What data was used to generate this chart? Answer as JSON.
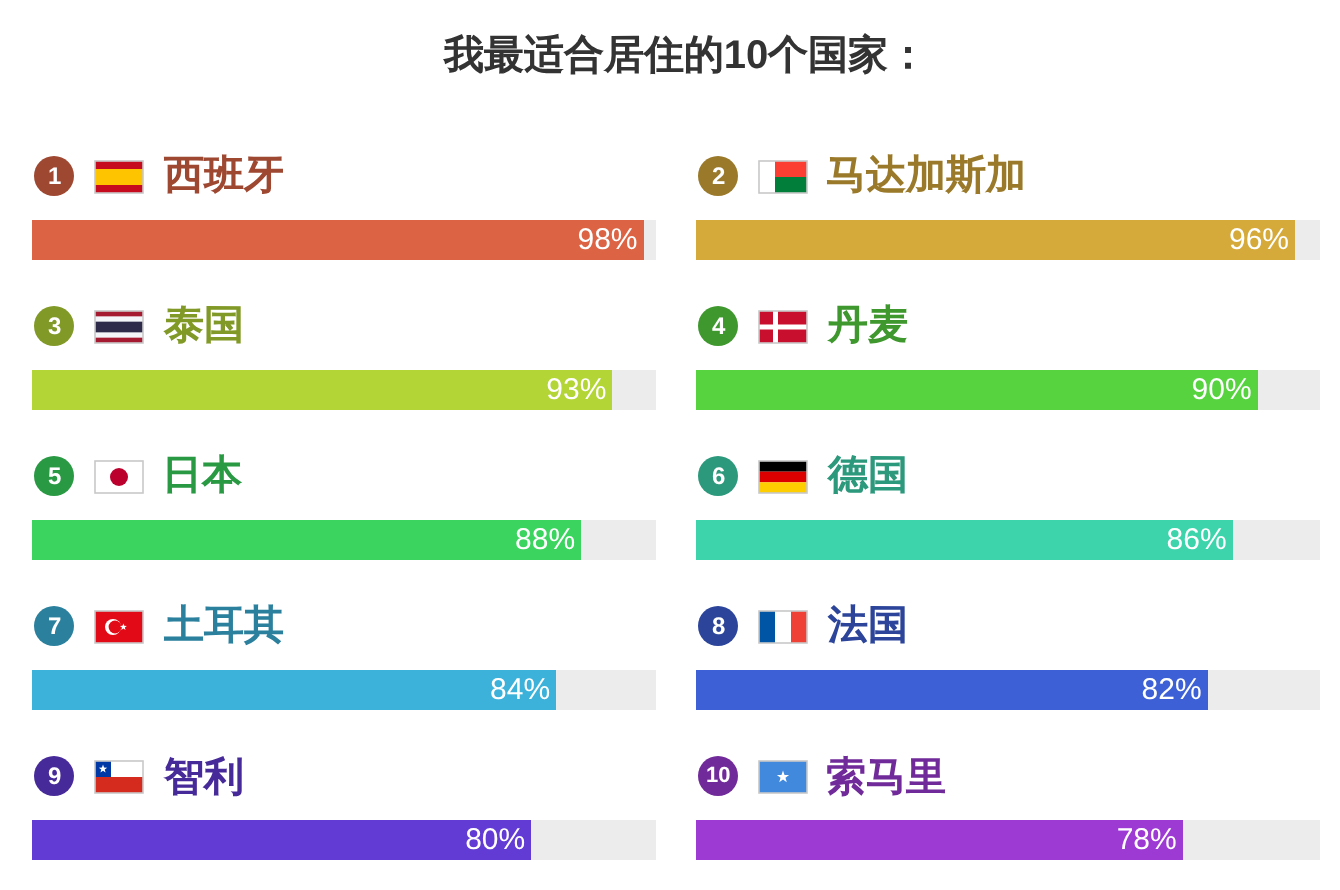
{
  "chart_data": [
    {
      "type": "bar",
      "orientation": "horizontal",
      "title": "我最适合居住的10个国家：",
      "categories": [
        "西班牙",
        "泰国",
        "日本",
        "土耳其",
        "智利"
      ],
      "values": [
        98,
        93,
        88,
        84,
        80
      ],
      "value_labels": [
        "98%",
        "93%",
        "88%",
        "84%",
        "80%"
      ],
      "colors": [
        "#dc6444",
        "#b3d535",
        "#3bd45e",
        "#3cb2da",
        "#623ad4"
      ],
      "xlim": [
        0,
        100
      ],
      "tick_labels": "y",
      "annotations": [
        "1",
        "3",
        "5",
        "7",
        "9"
      ]
    },
    {
      "type": "bar",
      "orientation": "horizontal",
      "categories": [
        "马达加斯加",
        "丹麦",
        "德国",
        "法国",
        "索马里"
      ],
      "values": [
        96,
        90,
        86,
        82,
        78
      ],
      "value_labels": [
        "96%",
        "90%",
        "86%",
        "82%",
        "78%"
      ],
      "colors": [
        "#d6aa3a",
        "#57d340",
        "#3dd4ac",
        "#3d60d6",
        "#9d3ad4"
      ],
      "xlim": [
        0,
        100
      ],
      "tick_labels": "y",
      "annotations": [
        "2",
        "4",
        "6",
        "8",
        "10"
      ]
    }
  ]
}
